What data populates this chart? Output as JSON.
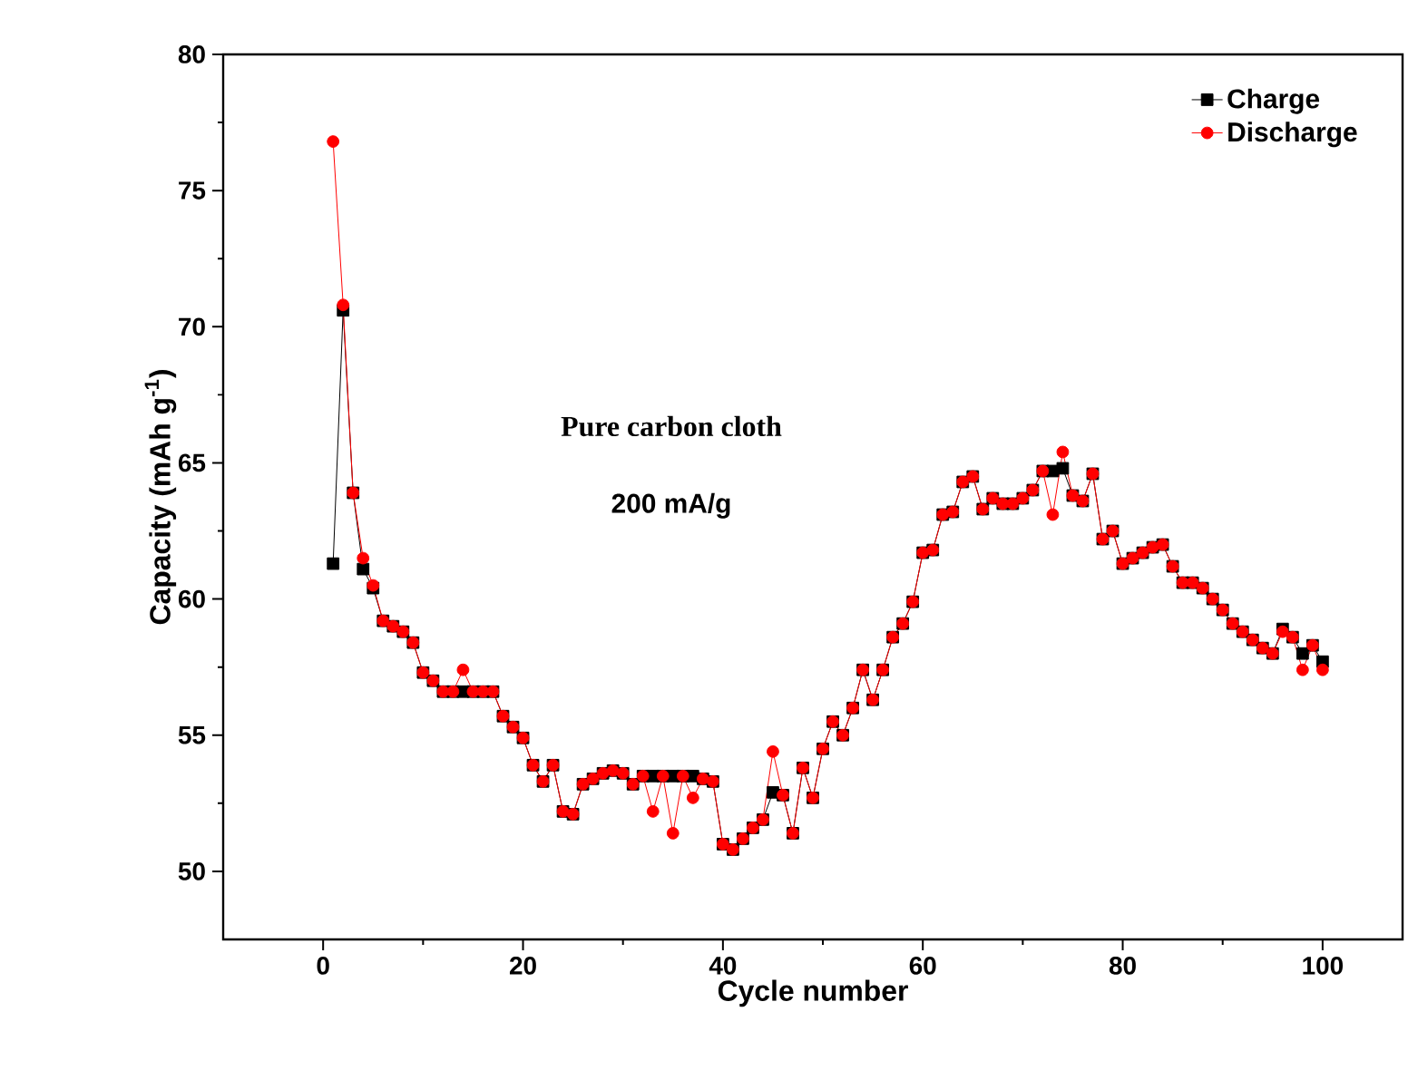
{
  "chart_data": {
    "type": "line",
    "xlabel": "Cycle number",
    "ylabel": "Capacity (mAh g$^{-1}$)",
    "x": [
      1,
      2,
      3,
      4,
      5,
      6,
      7,
      8,
      9,
      10,
      11,
      12,
      13,
      14,
      15,
      16,
      17,
      18,
      19,
      20,
      21,
      22,
      23,
      24,
      25,
      26,
      27,
      28,
      29,
      30,
      31,
      32,
      33,
      34,
      35,
      36,
      37,
      38,
      39,
      40,
      41,
      42,
      43,
      44,
      45,
      46,
      47,
      48,
      49,
      50,
      51,
      52,
      53,
      54,
      55,
      56,
      57,
      58,
      59,
      60,
      61,
      62,
      63,
      64,
      65,
      66,
      67,
      68,
      69,
      70,
      71,
      72,
      73,
      74,
      75,
      76,
      77,
      78,
      79,
      80,
      81,
      82,
      83,
      84,
      85,
      86,
      87,
      88,
      89,
      90,
      91,
      92,
      93,
      94,
      95,
      96,
      97,
      98,
      99,
      100
    ],
    "series": [
      {
        "name": "Charge",
        "color": "#000000",
        "marker": "square",
        "values": [
          61.3,
          70.6,
          63.9,
          61.1,
          60.4,
          59.2,
          59.0,
          58.8,
          58.4,
          57.3,
          57.0,
          56.6,
          56.6,
          56.6,
          56.6,
          56.6,
          56.6,
          55.7,
          55.3,
          54.9,
          53.9,
          53.3,
          53.9,
          52.2,
          52.1,
          53.2,
          53.4,
          53.6,
          53.7,
          53.6,
          53.2,
          53.5,
          53.5,
          53.5,
          53.5,
          53.5,
          53.5,
          53.4,
          53.3,
          51.0,
          50.8,
          51.2,
          51.6,
          51.9,
          52.9,
          52.8,
          51.4,
          53.8,
          52.7,
          54.5,
          55.5,
          55.0,
          56.0,
          57.4,
          56.3,
          57.4,
          58.6,
          59.1,
          59.9,
          61.7,
          61.8,
          63.1,
          63.2,
          64.3,
          64.5,
          63.3,
          63.7,
          63.5,
          63.5,
          63.7,
          64.0,
          64.7,
          64.7,
          64.8,
          63.8,
          63.6,
          64.6,
          62.2,
          62.5,
          61.3,
          61.5,
          61.7,
          61.9,
          62.0,
          61.2,
          60.6,
          60.6,
          60.4,
          60.0,
          59.6,
          59.1,
          58.8,
          58.5,
          58.2,
          58.0,
          58.9,
          58.6,
          58.0,
          58.3,
          57.7
        ]
      },
      {
        "name": "Discharge",
        "color": "#ff0000",
        "marker": "circle",
        "values": [
          76.8,
          70.8,
          63.9,
          61.5,
          60.5,
          59.2,
          59.0,
          58.8,
          58.4,
          57.3,
          57.0,
          56.6,
          56.6,
          57.4,
          56.6,
          56.6,
          56.6,
          55.7,
          55.3,
          54.9,
          53.9,
          53.3,
          53.9,
          52.2,
          52.1,
          53.2,
          53.4,
          53.6,
          53.7,
          53.6,
          53.2,
          53.5,
          52.2,
          53.5,
          51.4,
          53.5,
          52.7,
          53.4,
          53.3,
          51.0,
          50.8,
          51.2,
          51.6,
          51.9,
          54.4,
          52.8,
          51.4,
          53.8,
          52.7,
          54.5,
          55.5,
          55.0,
          56.0,
          57.4,
          56.3,
          57.4,
          58.6,
          59.1,
          59.9,
          61.7,
          61.8,
          63.1,
          63.2,
          64.3,
          64.5,
          63.3,
          63.7,
          63.5,
          63.5,
          63.7,
          64.0,
          64.7,
          63.1,
          65.4,
          63.8,
          63.6,
          64.6,
          62.2,
          62.5,
          61.3,
          61.5,
          61.7,
          61.9,
          62.0,
          61.2,
          60.6,
          60.6,
          60.4,
          60.0,
          59.6,
          59.1,
          58.8,
          58.5,
          58.2,
          58.0,
          58.8,
          58.6,
          57.4,
          58.3,
          57.4
        ]
      }
    ],
    "xlim": [
      -10,
      108
    ],
    "ylim": [
      47.5,
      80
    ],
    "xticks": [
      0,
      20,
      40,
      60,
      80,
      100
    ],
    "yticks": [
      50,
      55,
      60,
      65,
      70,
      75,
      80
    ],
    "legend": "top right",
    "line_style": "solid",
    "annotations": [
      "Pure carbon cloth",
      "200 mA/g"
    ]
  }
}
